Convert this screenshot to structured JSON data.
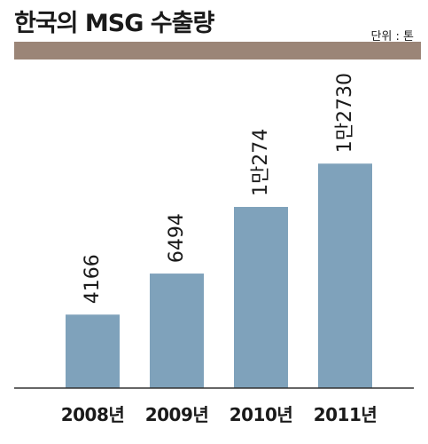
{
  "title": "한국의 MSG 수출량",
  "unit_label": "단위 : 톤",
  "colors": {
    "title_bar": "#9b8577",
    "bar": "#7fa2bb",
    "axis": "#333333"
  },
  "chart_data": {
    "type": "bar",
    "title": "한국의 MSG 수출량",
    "categories": [
      "2008년",
      "2009년",
      "2010년",
      "2011년"
    ],
    "values": [
      4166,
      6494,
      10274,
      12730
    ],
    "value_labels": [
      "4166",
      "6494",
      "1만274",
      "1만2730"
    ],
    "ylim": [
      0,
      13700
    ],
    "unit": "단위 : 톤",
    "grid": false,
    "legend": "none"
  }
}
